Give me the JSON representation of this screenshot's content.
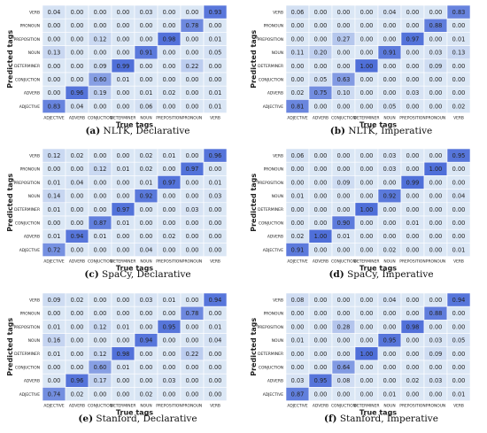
{
  "chart_data": [
    {
      "type": "heatmap",
      "caption_label": "(a)",
      "caption_text": "NLTK, Declarative",
      "xlabel": "True tags",
      "ylabel": "Predicted tags",
      "x_categories": [
        "ADJECTIVE",
        "ADVERB",
        "CONJUCTION",
        "DETERMINER",
        "NOUN",
        "PREPOSITION",
        "PRONOUN",
        "VERB"
      ],
      "y_categories": [
        "VERB",
        "PRONOUN",
        "PREPOSITION",
        "NOUN",
        "DETERMINER",
        "CONJUCTION",
        "ADVERB",
        "ADJECTIVE"
      ],
      "values": [
        [
          "0.04",
          "0.00",
          "0.00",
          "0.00",
          "0.03",
          "0.00",
          "0.00",
          "0.93"
        ],
        [
          "0.00",
          "0.00",
          "0.00",
          "0.00",
          "0.00",
          "0.00",
          "0.78",
          "0.00"
        ],
        [
          "0.00",
          "0.00",
          "0.12",
          "0.00",
          "0.00",
          "0.98",
          "0.00",
          "0.01"
        ],
        [
          "0.13",
          "0.00",
          "0.00",
          "0.00",
          "0.91",
          "0.00",
          "0.00",
          "0.05"
        ],
        [
          "0.00",
          "0.00",
          "0.09",
          "0.99",
          "0.00",
          "0.00",
          "0.22",
          "0.00"
        ],
        [
          "0.00",
          "0.00",
          "0.60",
          "0.01",
          "0.00",
          "0.00",
          "0.00",
          "0.00"
        ],
        [
          "0.00",
          "0.96",
          "0.19",
          "0.00",
          "0.01",
          "0.02",
          "0.00",
          "0.01"
        ],
        [
          "0.83",
          "0.04",
          "0.00",
          "0.00",
          "0.06",
          "0.00",
          "0.00",
          "0.01"
        ]
      ]
    },
    {
      "type": "heatmap",
      "caption_label": "(b)",
      "caption_text": "NLTK, Imperative",
      "xlabel": "True tags",
      "ylabel": "Predicted tags",
      "x_categories": [
        "ADJECTIVE",
        "ADVERB",
        "CONJUCTION",
        "DETERMINER",
        "NOUN",
        "PREPOSITION",
        "PRONOUN",
        "VERB"
      ],
      "y_categories": [
        "VERB",
        "PRONOUN",
        "PREPOSITION",
        "NOUN",
        "DETERMINER",
        "CONJUCTION",
        "ADVERB",
        "ADJECTIVE"
      ],
      "values": [
        [
          "0.06",
          "0.00",
          "0.00",
          "0.00",
          "0.04",
          "0.00",
          "0.00",
          "0.83"
        ],
        [
          "0.00",
          "0.00",
          "0.00",
          "0.00",
          "0.00",
          "0.00",
          "0.88",
          "0.00"
        ],
        [
          "0.00",
          "0.00",
          "0.27",
          "0.00",
          "0.00",
          "0.97",
          "0.00",
          "0.01"
        ],
        [
          "0.11",
          "0.20",
          "0.00",
          "0.00",
          "0.91",
          "0.00",
          "0.03",
          "0.13"
        ],
        [
          "0.00",
          "0.00",
          "0.00",
          "1.00",
          "0.00",
          "0.00",
          "0.09",
          "0.00"
        ],
        [
          "0.00",
          "0.05",
          "0.63",
          "0.00",
          "0.00",
          "0.00",
          "0.00",
          "0.00"
        ],
        [
          "0.02",
          "0.75",
          "0.10",
          "0.00",
          "0.00",
          "0.03",
          "0.00",
          "0.00"
        ],
        [
          "0.81",
          "0.00",
          "0.00",
          "0.00",
          "0.05",
          "0.00",
          "0.00",
          "0.02"
        ]
      ]
    },
    {
      "type": "heatmap",
      "caption_label": "(c)",
      "caption_text": "SpaCy, Declarative",
      "xlabel": "True tags",
      "ylabel": "Predicted tags",
      "x_categories": [
        "ADJECTIVE",
        "ADVERB",
        "CONJUCTION",
        "DETERMINER",
        "NOUN",
        "PREPOSITION",
        "PRONOUN",
        "VERB"
      ],
      "y_categories": [
        "VERB",
        "PRONOUN",
        "PREPOSITION",
        "NOUN",
        "DETERMINER",
        "CONJUCTION",
        "ADVERB",
        "ADJECTIVE"
      ],
      "values": [
        [
          "0.12",
          "0.02",
          "0.00",
          "0.00",
          "0.02",
          "0.01",
          "0.00",
          "0.96"
        ],
        [
          "0.00",
          "0.00",
          "0.12",
          "0.01",
          "0.02",
          "0.00",
          "0.97",
          "0.00"
        ],
        [
          "0.01",
          "0.04",
          "0.00",
          "0.00",
          "0.01",
          "0.97",
          "0.00",
          "0.01"
        ],
        [
          "0.14",
          "0.00",
          "0.00",
          "0.00",
          "0.92",
          "0.00",
          "0.00",
          "0.03"
        ],
        [
          "0.01",
          "0.00",
          "0.00",
          "0.97",
          "0.00",
          "0.00",
          "0.03",
          "0.00"
        ],
        [
          "0.00",
          "0.00",
          "0.87",
          "0.01",
          "0.00",
          "0.00",
          "0.00",
          "0.00"
        ],
        [
          "0.01",
          "0.94",
          "0.01",
          "0.00",
          "0.00",
          "0.02",
          "0.00",
          "0.00"
        ],
        [
          "0.72",
          "0.00",
          "0.00",
          "0.00",
          "0.04",
          "0.00",
          "0.00",
          "0.00"
        ]
      ]
    },
    {
      "type": "heatmap",
      "caption_label": "(d)",
      "caption_text": "SpaCy, Imperative",
      "xlabel": "True tags",
      "ylabel": "Predicted tags",
      "x_categories": [
        "ADJECTIVE",
        "ADVERB",
        "CONJUCTION",
        "DETERMINER",
        "NOUN",
        "PREPOSITION",
        "PRONOUN",
        "VERB"
      ],
      "y_categories": [
        "VERB",
        "PRONOUN",
        "PREPOSITION",
        "NOUN",
        "DETERMINER",
        "CONJUCTION",
        "ADVERB",
        "ADJECTIVE"
      ],
      "values": [
        [
          "0.06",
          "0.00",
          "0.00",
          "0.00",
          "0.03",
          "0.00",
          "0.00",
          "0.95"
        ],
        [
          "0.00",
          "0.00",
          "0.00",
          "0.00",
          "0.03",
          "0.00",
          "1.00",
          "0.00"
        ],
        [
          "0.00",
          "0.00",
          "0.09",
          "0.00",
          "0.00",
          "0.99",
          "0.00",
          "0.00"
        ],
        [
          "0.01",
          "0.00",
          "0.00",
          "0.00",
          "0.92",
          "0.00",
          "0.00",
          "0.04"
        ],
        [
          "0.00",
          "0.00",
          "0.00",
          "1.00",
          "0.00",
          "0.00",
          "0.00",
          "0.00"
        ],
        [
          "0.00",
          "0.00",
          "0.90",
          "0.00",
          "0.00",
          "0.01",
          "0.00",
          "0.00"
        ],
        [
          "0.02",
          "1.00",
          "0.01",
          "0.00",
          "0.00",
          "0.00",
          "0.00",
          "0.00"
        ],
        [
          "0.91",
          "0.00",
          "0.00",
          "0.00",
          "0.02",
          "0.00",
          "0.00",
          "0.01"
        ]
      ]
    },
    {
      "type": "heatmap",
      "caption_label": "(e)",
      "caption_text": "Stanford, Declarative",
      "xlabel": "True tags",
      "ylabel": "Predicted tags",
      "x_categories": [
        "ADJECTIVE",
        "ADVERB",
        "CONJUCTION",
        "DETERMINER",
        "NOUN",
        "PREPOSITION",
        "PRONOUN",
        "VERB"
      ],
      "y_categories": [
        "VERB",
        "PRONOUN",
        "PREPOSITION",
        "NOUN",
        "DETERMINER",
        "CONJUCTION",
        "ADVERB",
        "ADJECTIVE"
      ],
      "values": [
        [
          "0.09",
          "0.02",
          "0.00",
          "0.00",
          "0.03",
          "0.01",
          "0.00",
          "0.94"
        ],
        [
          "0.00",
          "0.00",
          "0.00",
          "0.00",
          "0.00",
          "0.00",
          "0.78",
          "0.00"
        ],
        [
          "0.01",
          "0.00",
          "0.12",
          "0.01",
          "0.00",
          "0.95",
          "0.00",
          "0.01"
        ],
        [
          "0.16",
          "0.00",
          "0.00",
          "0.00",
          "0.94",
          "0.00",
          "0.00",
          "0.04"
        ],
        [
          "0.01",
          "0.00",
          "0.12",
          "0.98",
          "0.00",
          "0.00",
          "0.22",
          "0.00"
        ],
        [
          "0.00",
          "0.00",
          "0.60",
          "0.01",
          "0.00",
          "0.00",
          "0.00",
          "0.00"
        ],
        [
          "0.00",
          "0.96",
          "0.17",
          "0.00",
          "0.00",
          "0.03",
          "0.00",
          "0.00"
        ],
        [
          "0.74",
          "0.02",
          "0.00",
          "0.00",
          "0.02",
          "0.00",
          "0.00",
          "0.00"
        ]
      ]
    },
    {
      "type": "heatmap",
      "caption_label": "(f)",
      "caption_text": "Stanford, Imperative",
      "xlabel": "True tags",
      "ylabel": "Predicted tags",
      "x_categories": [
        "ADJECTIVE",
        "ADVERB",
        "CONJUCTION",
        "DETERMINER",
        "NOUN",
        "PREPOSITION",
        "PRONOUN",
        "VERB"
      ],
      "y_categories": [
        "VERB",
        "PRONOUN",
        "PREPOSITION",
        "NOUN",
        "DETERMINER",
        "CONJUCTION",
        "ADVERB",
        "ADJECTIVE"
      ],
      "values": [
        [
          "0.08",
          "0.00",
          "0.00",
          "0.00",
          "0.04",
          "0.00",
          "0.00",
          "0.94"
        ],
        [
          "0.00",
          "0.00",
          "0.00",
          "0.00",
          "0.00",
          "0.00",
          "0.88",
          "0.00"
        ],
        [
          "0.00",
          "0.00",
          "0.28",
          "0.00",
          "0.00",
          "0.98",
          "0.00",
          "0.00"
        ],
        [
          "0.01",
          "0.00",
          "0.00",
          "0.00",
          "0.95",
          "0.00",
          "0.03",
          "0.05"
        ],
        [
          "0.00",
          "0.00",
          "0.00",
          "1.00",
          "0.00",
          "0.00",
          "0.09",
          "0.00"
        ],
        [
          "0.00",
          "0.00",
          "0.64",
          "0.00",
          "0.00",
          "0.00",
          "0.00",
          "0.00"
        ],
        [
          "0.03",
          "0.95",
          "0.08",
          "0.00",
          "0.00",
          "0.02",
          "0.03",
          "0.00"
        ],
        [
          "0.87",
          "0.00",
          "0.00",
          "0.00",
          "0.01",
          "0.00",
          "0.00",
          "0.01"
        ]
      ]
    }
  ],
  "colors": {
    "cell_low": "#dbe7f5",
    "cell_high": "#4f6fd9",
    "cell_border": "#ffffff",
    "text": "#222222"
  }
}
